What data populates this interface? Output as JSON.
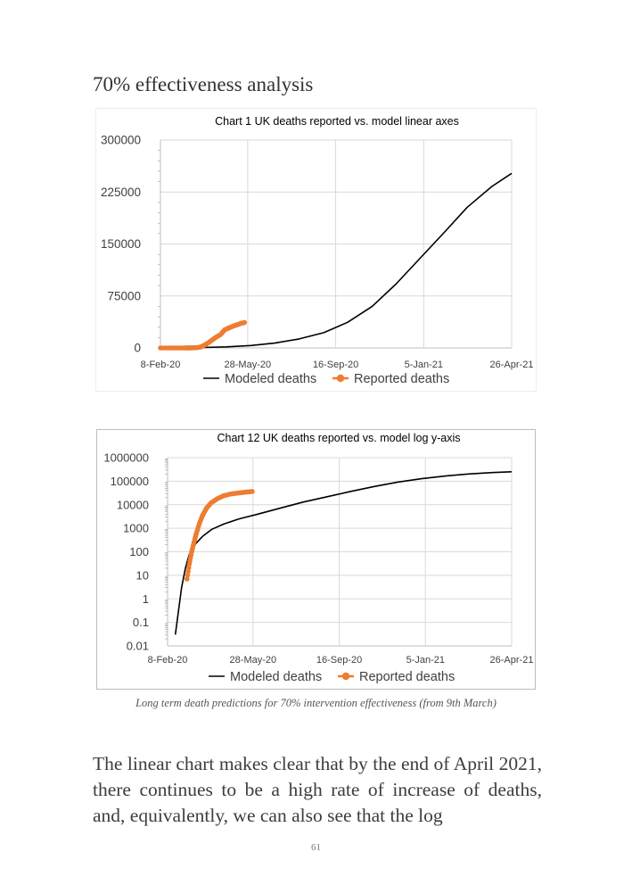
{
  "section_heading": "70% effectiveness analysis",
  "caption": "Long term death predictions for 70% intervention effectiveness (from 9th March)",
  "body_text": "The linear chart makes clear that by the end of April 2021, there continues to be a high rate of increase of deaths, and, equivalently, we can also see that the log",
  "page_number": "61",
  "colors": {
    "modeled": "#000000",
    "reported": "#ed7d31",
    "grid": "#d9d9d9",
    "axis": "#bfbfbf"
  },
  "chart_data": [
    {
      "type": "line",
      "title": "Chart 1 UK deaths reported vs. model linear axes",
      "x_tick_labels": [
        "8-Feb-20",
        "28-May-20",
        "16-Sep-20",
        "5-Jan-21",
        "26-Apr-21"
      ],
      "x_ticks_dates": [
        "2020-02-08",
        "2020-05-28",
        "2020-09-16",
        "2021-01-05",
        "2021-04-26"
      ],
      "xlim": [
        "2020-02-08",
        "2021-04-26"
      ],
      "y_scale": "linear",
      "ylim": [
        0,
        300000
      ],
      "y_tick_labels": [
        "0",
        "75000",
        "150000",
        "225000",
        "300000"
      ],
      "y_ticks": [
        0,
        75000,
        150000,
        225000,
        300000
      ],
      "grid": true,
      "legend": "bottom",
      "series": [
        {
          "name": "Modeled deaths",
          "marker": "none",
          "points": [
            [
              "2020-03-01",
              100
            ],
            [
              "2020-04-01",
              600
            ],
            [
              "2020-05-01",
              1600
            ],
            [
              "2020-06-01",
              3500
            ],
            [
              "2020-07-01",
              7000
            ],
            [
              "2020-08-01",
              13000
            ],
            [
              "2020-09-01",
              22000
            ],
            [
              "2020-10-01",
              37000
            ],
            [
              "2020-11-01",
              60000
            ],
            [
              "2020-12-01",
              92000
            ],
            [
              "2021-01-01",
              130000
            ],
            [
              "2021-02-01",
              168000
            ],
            [
              "2021-03-01",
              203000
            ],
            [
              "2021-04-01",
              233000
            ],
            [
              "2021-04-26",
              252000
            ]
          ]
        },
        {
          "name": "Reported deaths",
          "marker": "circle",
          "points": [
            [
              "2020-02-08",
              0
            ],
            [
              "2020-02-20",
              0
            ],
            [
              "2020-03-01",
              0
            ],
            [
              "2020-03-10",
              10
            ],
            [
              "2020-03-15",
              40
            ],
            [
              "2020-03-20",
              180
            ],
            [
              "2020-03-25",
              460
            ],
            [
              "2020-03-30",
              1400
            ],
            [
              "2020-04-04",
              4300
            ],
            [
              "2020-04-09",
              7900
            ],
            [
              "2020-04-14",
              12100
            ],
            [
              "2020-04-19",
              16100
            ],
            [
              "2020-04-24",
              19500
            ],
            [
              "2020-04-29",
              26100
            ],
            [
              "2020-05-04",
              28700
            ],
            [
              "2020-05-09",
              31200
            ],
            [
              "2020-05-14",
              33200
            ],
            [
              "2020-05-19",
              35300
            ],
            [
              "2020-05-24",
              36700
            ]
          ]
        }
      ]
    },
    {
      "type": "line",
      "title": "Chart 12 UK deaths reported vs. model log y-axis",
      "x_tick_labels": [
        "8-Feb-20",
        "28-May-20",
        "16-Sep-20",
        "5-Jan-21",
        "26-Apr-21"
      ],
      "x_ticks_dates": [
        "2020-02-08",
        "2020-05-28",
        "2020-09-16",
        "2021-01-05",
        "2021-04-26"
      ],
      "xlim": [
        "2020-02-08",
        "2021-04-26"
      ],
      "y_scale": "log",
      "ylim": [
        0.01,
        1000000
      ],
      "y_tick_labels": [
        "0.01",
        "0.1",
        "1",
        "10",
        "100",
        "1000",
        "10000",
        "100000",
        "1000000"
      ],
      "y_ticks": [
        0.01,
        0.1,
        1,
        10,
        100,
        1000,
        10000,
        100000,
        1000000
      ],
      "grid": true,
      "legend": "bottom",
      "series": [
        {
          "name": "Modeled deaths",
          "marker": "none",
          "points": [
            [
              "2020-02-18",
              0.03
            ],
            [
              "2020-02-22",
              0.3
            ],
            [
              "2020-02-26",
              3
            ],
            [
              "2020-03-02",
              20
            ],
            [
              "2020-03-07",
              80
            ],
            [
              "2020-03-14",
              200
            ],
            [
              "2020-03-24",
              450
            ],
            [
              "2020-04-05",
              900
            ],
            [
              "2020-04-20",
              1500
            ],
            [
              "2020-05-10",
              2500
            ],
            [
              "2020-06-01",
              3800
            ],
            [
              "2020-07-01",
              7000
            ],
            [
              "2020-08-01",
              13000
            ],
            [
              "2020-09-01",
              22000
            ],
            [
              "2020-10-01",
              37000
            ],
            [
              "2020-11-01",
              60000
            ],
            [
              "2020-12-01",
              92000
            ],
            [
              "2021-01-01",
              130000
            ],
            [
              "2021-02-01",
              168000
            ],
            [
              "2021-03-01",
              203000
            ],
            [
              "2021-04-01",
              233000
            ],
            [
              "2021-04-26",
              252000
            ]
          ]
        },
        {
          "name": "Reported deaths",
          "marker": "circle",
          "points": [
            [
              "2020-03-04",
              7
            ],
            [
              "2020-03-07",
              30
            ],
            [
              "2020-03-10",
              100
            ],
            [
              "2020-03-13",
              250
            ],
            [
              "2020-03-16",
              600
            ],
            [
              "2020-03-20",
              1600
            ],
            [
              "2020-03-24",
              3500
            ],
            [
              "2020-03-29",
              7000
            ],
            [
              "2020-04-04",
              12000
            ],
            [
              "2020-04-12",
              18000
            ],
            [
              "2020-04-20",
              24000
            ],
            [
              "2020-04-29",
              28500
            ],
            [
              "2020-05-09",
              31500
            ],
            [
              "2020-05-19",
              34500
            ],
            [
              "2020-05-27",
              36500
            ]
          ]
        }
      ]
    }
  ]
}
